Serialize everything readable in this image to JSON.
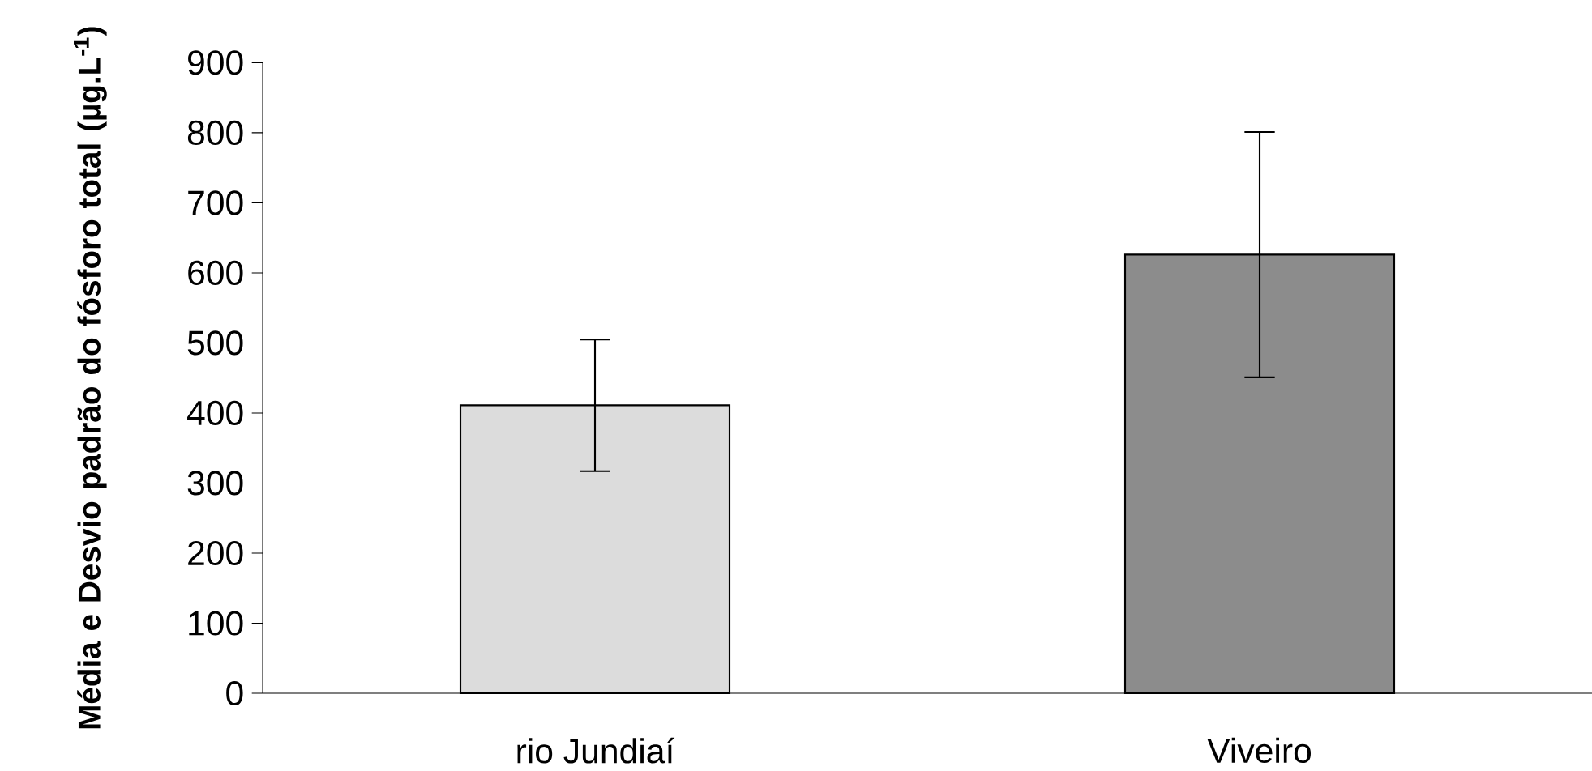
{
  "chart_data": {
    "type": "bar",
    "ylabel": "Média e Desvio padrão do fósforo total (µg.L$^{-1}$)",
    "categories": [
      "rio Jundiaí",
      "Viveiro"
    ],
    "values": [
      411,
      626
    ],
    "errors": [
      94,
      175
    ],
    "colors": [
      "#dcdcdc",
      "#8c8c8c"
    ],
    "ylim": [
      0,
      900
    ],
    "yticks": [
      0,
      100,
      200,
      300,
      400,
      500,
      600,
      700,
      800,
      900
    ],
    "grid": false
  }
}
